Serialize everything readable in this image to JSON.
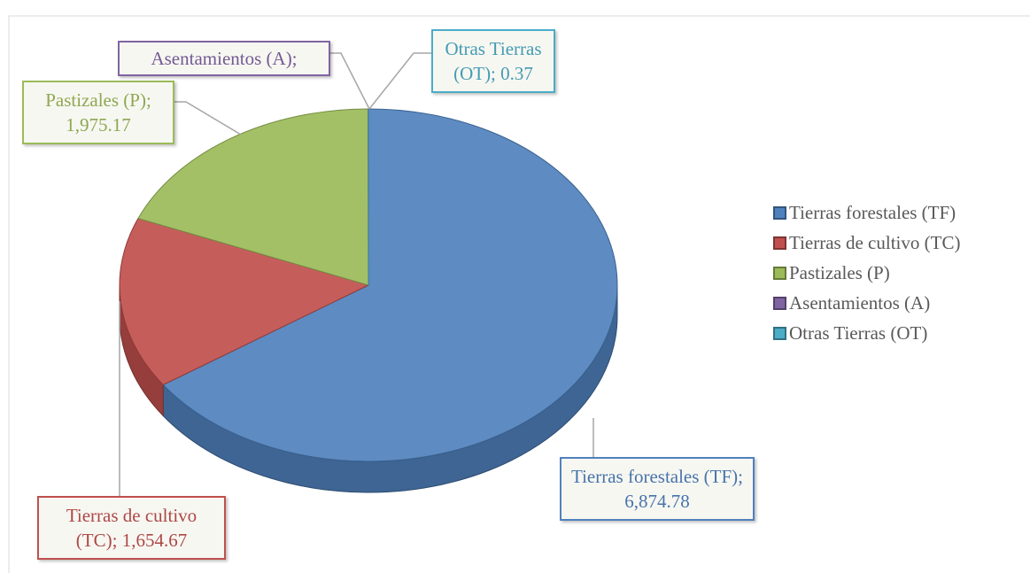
{
  "chart_data": {
    "type": "pie3d",
    "categories": [
      "Tierras forestales (TF)",
      "Tierras de cultivo (TC)",
      "Pastizales (P)",
      "Asentamientos (A)",
      "Otras Tierras (OT)"
    ],
    "values": [
      6874.78,
      1654.67,
      1975.17,
      1,
      0.37
    ],
    "data_labels": [
      "Tierras forestales (TF); 6,874.78",
      "Tierras de cultivo (TC); 1,654.67",
      "Pastizales (P); 1,975.17",
      "Asentamientos (A);",
      "Otras Tierras (OT); 0.37"
    ],
    "colors": [
      "#4f81bd",
      "#c0504d",
      "#9bbb59",
      "#8064a2",
      "#4bacc6"
    ],
    "legend": "right"
  }
}
